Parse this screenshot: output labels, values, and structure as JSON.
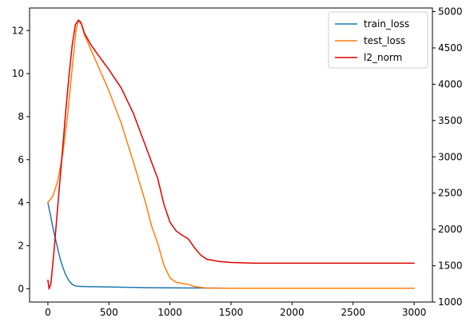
{
  "chart_data": {
    "type": "line",
    "title": "",
    "xlabel": "",
    "ylabel": "",
    "ylabel_right": "",
    "xlim": [
      -150,
      3150
    ],
    "ylim": [
      -0.62,
      13.05
    ],
    "ylim_right": [
      1000,
      5050
    ],
    "x_ticks": [
      0,
      500,
      1000,
      1500,
      2000,
      2500,
      3000
    ],
    "y_ticks": [
      0,
      2,
      4,
      6,
      8,
      10,
      12
    ],
    "y_ticks_right": [
      1000,
      1500,
      2000,
      2500,
      3000,
      3500,
      4000,
      4500,
      5000
    ],
    "grid": false,
    "legend_position": "top-right",
    "series": [
      {
        "name": "train_loss",
        "color": "#1f77b4",
        "axis": "left",
        "points": [
          [
            0,
            4.0
          ],
          [
            25,
            3.3
          ],
          [
            50,
            2.6
          ],
          [
            75,
            2.0
          ],
          [
            100,
            1.4
          ],
          [
            125,
            0.95
          ],
          [
            150,
            0.6
          ],
          [
            175,
            0.35
          ],
          [
            200,
            0.2
          ],
          [
            225,
            0.13
          ],
          [
            250,
            0.11
          ],
          [
            300,
            0.1
          ],
          [
            500,
            0.08
          ],
          [
            800,
            0.05
          ],
          [
            1000,
            0.04
          ],
          [
            1300,
            0.03
          ],
          [
            1500,
            0.02
          ],
          [
            2000,
            0.02
          ],
          [
            2500,
            0.02
          ],
          [
            3000,
            0.02
          ]
        ]
      },
      {
        "name": "test_loss",
        "color": "#ff7f0e",
        "axis": "left",
        "points": [
          [
            0,
            4.0
          ],
          [
            40,
            4.3
          ],
          [
            80,
            5.0
          ],
          [
            120,
            6.2
          ],
          [
            160,
            8.0
          ],
          [
            200,
            10.3
          ],
          [
            230,
            12.0
          ],
          [
            250,
            12.5
          ],
          [
            270,
            12.4
          ],
          [
            300,
            11.8
          ],
          [
            400,
            10.5
          ],
          [
            500,
            9.2
          ],
          [
            600,
            7.7
          ],
          [
            700,
            5.9
          ],
          [
            800,
            4.0
          ],
          [
            850,
            2.9
          ],
          [
            900,
            2.1
          ],
          [
            950,
            1.1
          ],
          [
            1000,
            0.5
          ],
          [
            1050,
            0.3
          ],
          [
            1100,
            0.25
          ],
          [
            1150,
            0.2
          ],
          [
            1200,
            0.1
          ],
          [
            1300,
            0.03
          ],
          [
            1500,
            0.02
          ],
          [
            2000,
            0.02
          ],
          [
            3000,
            0.02
          ]
        ]
      },
      {
        "name": "l2_norm",
        "color": "#e00000",
        "axis": "right",
        "points": [
          [
            0,
            1300
          ],
          [
            10,
            1180
          ],
          [
            25,
            1260
          ],
          [
            50,
            1700
          ],
          [
            75,
            2200
          ],
          [
            100,
            2700
          ],
          [
            125,
            3200
          ],
          [
            150,
            3700
          ],
          [
            175,
            4150
          ],
          [
            200,
            4550
          ],
          [
            225,
            4820
          ],
          [
            250,
            4880
          ],
          [
            275,
            4830
          ],
          [
            300,
            4700
          ],
          [
            350,
            4550
          ],
          [
            400,
            4430
          ],
          [
            500,
            4200
          ],
          [
            600,
            3950
          ],
          [
            700,
            3600
          ],
          [
            800,
            3150
          ],
          [
            900,
            2700
          ],
          [
            950,
            2350
          ],
          [
            1000,
            2100
          ],
          [
            1050,
            1980
          ],
          [
            1100,
            1920
          ],
          [
            1150,
            1870
          ],
          [
            1200,
            1750
          ],
          [
            1250,
            1650
          ],
          [
            1300,
            1590
          ],
          [
            1400,
            1560
          ],
          [
            1500,
            1545
          ],
          [
            1700,
            1535
          ],
          [
            2000,
            1535
          ],
          [
            2500,
            1535
          ],
          [
            3000,
            1535
          ]
        ]
      }
    ]
  }
}
